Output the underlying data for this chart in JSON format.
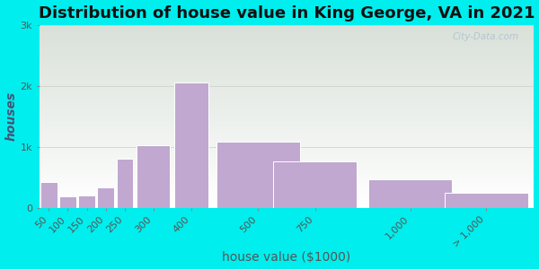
{
  "title": "Distribution of house value in King George, VA in 2021",
  "xlabel": "house value ($1000)",
  "ylabel": "houses",
  "bar_color": "#C0A8D0",
  "bar_edgecolor": "#ffffff",
  "background_outer": "#00EEEE",
  "watermark": "City-Data.com",
  "title_fontsize": 13,
  "label_fontsize": 10,
  "tick_fontsize": 8,
  "categories": [
    "50",
    "100",
    "150",
    "200",
    "250",
    "300",
    "400",
    "500",
    "750",
    "1,000",
    "> 1,000"
  ],
  "values": [
    420,
    180,
    195,
    340,
    800,
    1020,
    2060,
    1090,
    760,
    460,
    240
  ],
  "widths": [
    50,
    50,
    50,
    50,
    50,
    100,
    100,
    250,
    250,
    250,
    250
  ],
  "lefts": [
    25,
    75,
    125,
    175,
    225,
    275,
    375,
    475,
    625,
    875,
    1075
  ],
  "ylim": [
    0,
    3000
  ],
  "yticks": [
    0,
    1000,
    2000,
    3000
  ],
  "ytick_labels": [
    "0",
    "1k",
    "2k",
    "3k"
  ],
  "xlim": [
    25,
    1325
  ]
}
